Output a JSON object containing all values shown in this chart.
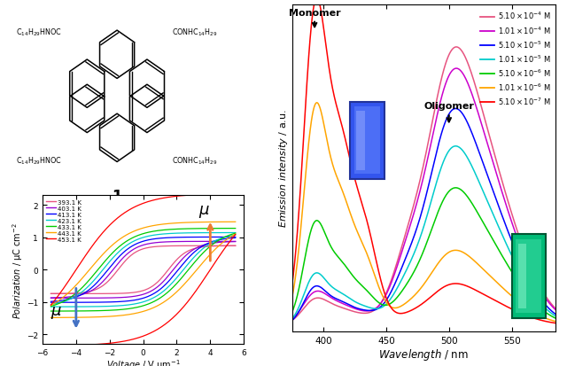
{
  "hysteresis_temps": [
    "393.1 K",
    "403.1 K",
    "413.1 K",
    "423.1 K",
    "433.1 K",
    "443.1 K",
    "453.1 K"
  ],
  "hysteresis_colors": [
    "#e75480",
    "#9400D3",
    "#0000FF",
    "#00CCCC",
    "#00CC00",
    "#FFA500",
    "#FF0000"
  ],
  "hysteresis_coercive": [
    1.5,
    1.8,
    2.1,
    2.4,
    2.7,
    3.2,
    4.0
  ],
  "hysteresis_remnant": [
    0.55,
    0.65,
    0.75,
    0.85,
    0.95,
    1.1,
    1.75
  ],
  "emission_labels": [
    "5.10x10^{-4} M",
    "1.01x10^{-4} M",
    "5.10x10^{-5} M",
    "1.01x10^{-5} M",
    "5.10x10^{-6} M",
    "1.01x10^{-6} M",
    "5.10x10^{-7} M"
  ],
  "emission_colors": [
    "#e75480",
    "#CC00CC",
    "#0000FF",
    "#00CCCC",
    "#00CC00",
    "#FFA500",
    "#FF0000"
  ],
  "bg_color": "#ffffff",
  "voltage_range": [
    -6,
    6
  ],
  "polarization_range": [
    -2.3,
    2.3
  ],
  "wavelength_range": [
    375,
    585
  ],
  "spectra_params": [
    [
      0.08,
      10,
      0.65,
      18,
      0.45
    ],
    [
      0.1,
      10,
      0.6,
      18,
      0.42
    ],
    [
      0.12,
      9,
      0.52,
      17,
      0.36
    ],
    [
      0.16,
      9,
      0.43,
      17,
      0.28
    ],
    [
      0.32,
      9,
      0.33,
      17,
      0.2
    ],
    [
      0.68,
      9,
      0.18,
      17,
      0.11
    ],
    [
      1.0,
      9,
      0.1,
      17,
      0.06
    ]
  ]
}
